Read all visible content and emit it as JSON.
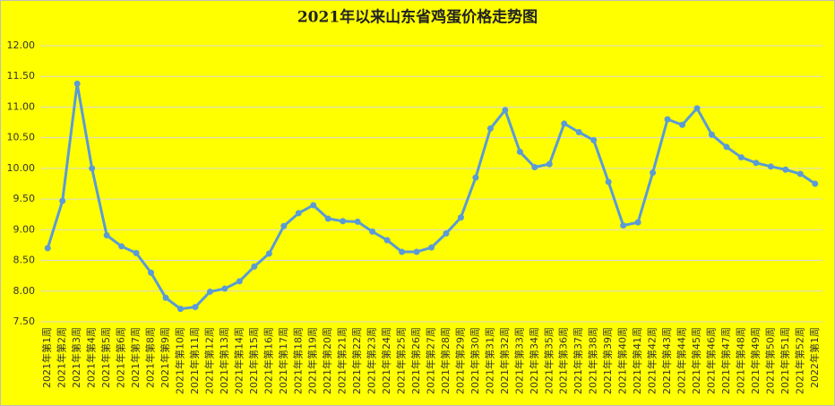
{
  "chart_data": {
    "type": "line",
    "title": "2021年以来山东省鸡蛋价格走势图",
    "categories": [
      "2021年第1周",
      "2021年第2周",
      "2021年第3周",
      "2021年第4周",
      "2021年第5周",
      "2021年第6周",
      "2021年第7周",
      "2021年第8周",
      "2021年第9周",
      "2021年第10周",
      "2021年第11周",
      "2021年第12周",
      "2021年第13周",
      "2021年第14周",
      "2021年第15周",
      "2021年第16周",
      "2021年第17周",
      "2021年第18周",
      "2021年第19周",
      "2021年第20周",
      "2021年第21周",
      "2021年第22周",
      "2021年第23周",
      "2021年第24周",
      "2021年第25周",
      "2021年第26周",
      "2021年第27周",
      "2021年第28周",
      "2021年第29周",
      "2021年第30周",
      "2021年第31周",
      "2021年第32周",
      "2021年第33周",
      "2021年第34周",
      "2021年第35周",
      "2021年第36周",
      "2021年第37周",
      "2021年第38周",
      "2021年第39周",
      "2021年第40周",
      "2021年第41周",
      "2021年第42周",
      "2021年第43周",
      "2021年第44周",
      "2021年第45周",
      "2021年第46周",
      "2021年第47周",
      "2021年第48周",
      "2021年第49周",
      "2021年第50周",
      "2021年第51周",
      "2021年第52周",
      "2022年第1周"
    ],
    "values": [
      8.7,
      9.47,
      11.38,
      10.0,
      8.91,
      8.73,
      8.62,
      8.3,
      7.89,
      7.71,
      7.74,
      7.99,
      8.04,
      8.16,
      8.4,
      8.61,
      9.06,
      9.27,
      9.4,
      9.18,
      9.14,
      9.13,
      8.97,
      8.83,
      8.64,
      8.64,
      8.71,
      8.94,
      9.2,
      9.85,
      10.65,
      10.95,
      10.27,
      10.02,
      10.07,
      10.73,
      10.59,
      10.46,
      9.78,
      9.07,
      9.12,
      9.93,
      10.8,
      10.71,
      10.98,
      10.55,
      10.35,
      10.18,
      10.09,
      10.03,
      9.98,
      9.91,
      9.75
    ],
    "color": "#5b9bd5",
    "ylim": [
      7.5,
      12
    ],
    "yticks": [
      {
        "value": 7.5,
        "label": "7.50"
      },
      {
        "value": 8,
        "label": "8.00"
      },
      {
        "value": 8.5,
        "label": "8.50"
      },
      {
        "value": 9,
        "label": "9.00"
      },
      {
        "value": 9.5,
        "label": "9.50"
      },
      {
        "value": 10,
        "label": "10.00"
      },
      {
        "value": 10.5,
        "label": "10.50"
      },
      {
        "value": 11,
        "label": "11.00"
      },
      {
        "value": 11.5,
        "label": "11.50"
      },
      {
        "value": 12,
        "label": "12.00"
      }
    ],
    "grid": true
  }
}
